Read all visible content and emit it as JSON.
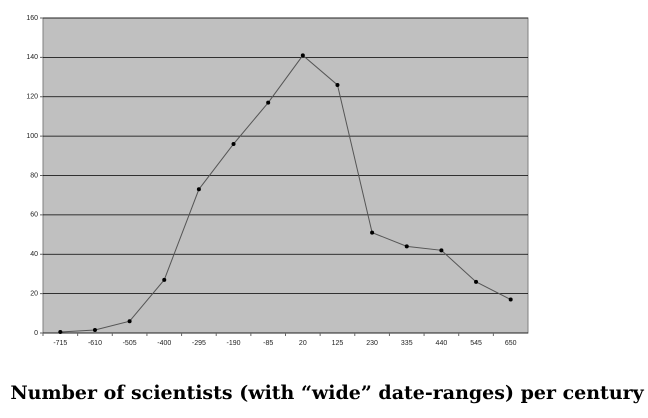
{
  "chart_data": {
    "type": "line",
    "title": "Number of scientists (with “wide” date-ranges) per century",
    "categories": [
      "-715",
      "-610",
      "-505",
      "-400",
      "-295",
      "-190",
      "-85",
      "20",
      "125",
      "230",
      "335",
      "440",
      "545",
      "650"
    ],
    "values": [
      0.5,
      1.5,
      6,
      27,
      73,
      96,
      117,
      141,
      126,
      51,
      44,
      42,
      26,
      17
    ],
    "color": "#555555",
    "ylim": [
      0,
      160
    ],
    "yticks": [
      0,
      20,
      40,
      60,
      80,
      100,
      120,
      140,
      160
    ],
    "grid": true
  }
}
